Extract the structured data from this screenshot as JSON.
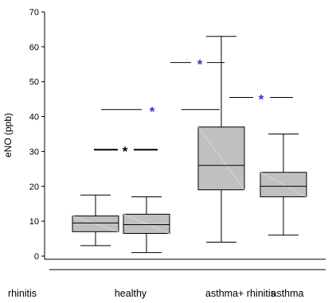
{
  "chart_data": {
    "type": "box",
    "ylabel": "eNO (ppb)",
    "ylim": [
      0,
      70
    ],
    "yticks": [
      0,
      10,
      20,
      30,
      40,
      50,
      60,
      70
    ],
    "categories": [
      "rhinitis",
      "healthy",
      "asthma+ rhinitis",
      "asthma"
    ],
    "box_color": "#c0c0c0",
    "boxes": [
      {
        "category": "rhinitis",
        "min": 3,
        "q1": 7,
        "median": 9.5,
        "q3": 11.5,
        "max": 17.5
      },
      {
        "category": "healthy",
        "min": 1,
        "q1": 6.5,
        "median": 9,
        "q3": 12,
        "max": 17
      },
      {
        "category": "asthma+ rhinitis",
        "min": 4,
        "q1": 19,
        "median": 26,
        "q3": 37,
        "max": 63
      },
      {
        "category": "asthma",
        "min": 6,
        "q1": 17,
        "median": 20,
        "q3": 24,
        "max": 35
      }
    ],
    "significance": [
      {
        "between": [
          "rhinitis",
          "healthy"
        ],
        "y": 30.5,
        "symbol": "*",
        "color": "#000000"
      },
      {
        "between": [
          "healthy",
          "asthma+ rhinitis"
        ],
        "y": 42,
        "symbol": "*",
        "color": "#3333cc"
      },
      {
        "between": [
          "asthma+ rhinitis"
        ],
        "y": 55.5,
        "symbol": "*",
        "color": "#3333cc"
      },
      {
        "between": [
          "asthma+ rhinitis",
          "asthma"
        ],
        "y": 45.5,
        "symbol": "*",
        "color": "#3333cc"
      }
    ]
  }
}
